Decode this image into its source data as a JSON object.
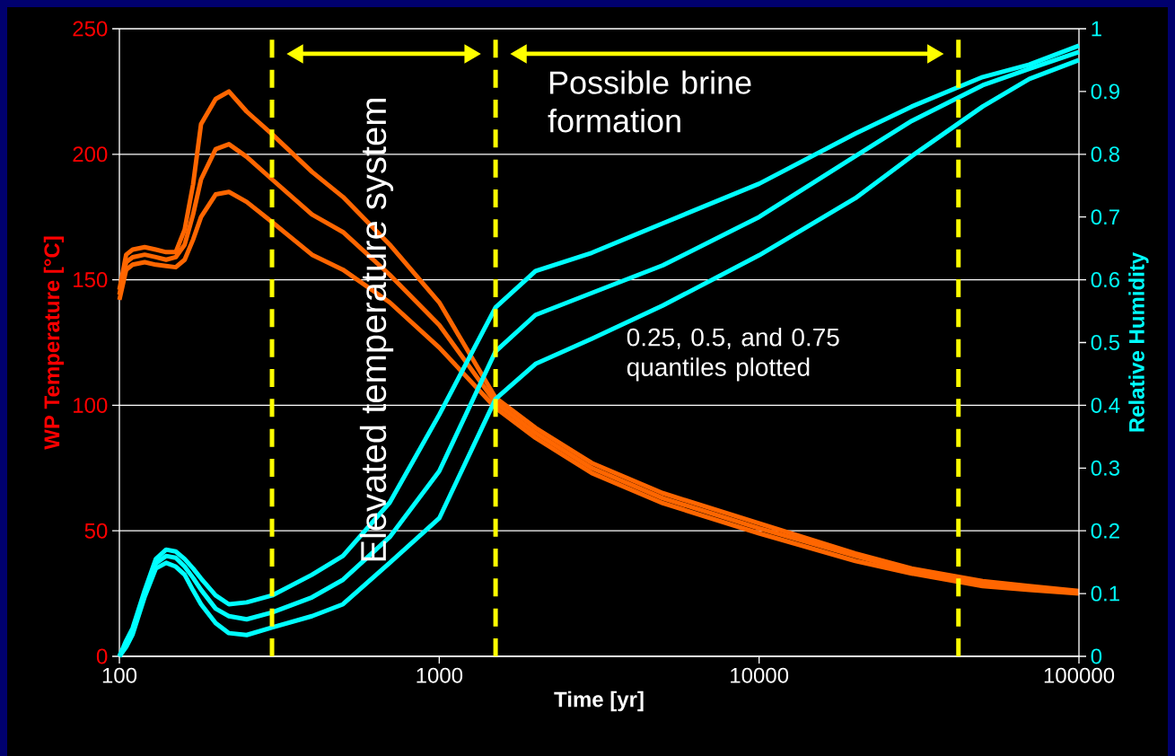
{
  "chart_data": {
    "type": "line",
    "xlabel": "Time [yr]",
    "ylabel": "WP Temperature [°C]",
    "y2label": "Relative Humidity",
    "log": "x",
    "grid": "y",
    "x": [
      100,
      105,
      110,
      120,
      130,
      140,
      150,
      160,
      170,
      180,
      200,
      220,
      250,
      300,
      400,
      500,
      700,
      1000,
      1500,
      2000,
      3000,
      5000,
      10000,
      20000,
      30000,
      50000,
      70000,
      100000
    ],
    "xlim": [
      100,
      100000
    ],
    "xticks": [
      100,
      1000,
      10000,
      100000
    ],
    "ylim": [
      0,
      250
    ],
    "yticks": [
      0,
      50,
      100,
      150,
      200,
      250
    ],
    "y2lim": [
      0,
      1
    ],
    "y2ticks": [
      0,
      0.1,
      0.2,
      0.3,
      0.4,
      0.5,
      0.6,
      0.7,
      0.8,
      0.9,
      1
    ],
    "series": [
      {
        "color": "#ff6600",
        "values": [
          146,
          160,
          162,
          163,
          162,
          161,
          161,
          170,
          188,
          212,
          222,
          225,
          217,
          208,
          193,
          183,
          164,
          141,
          103,
          91,
          77,
          65,
          53,
          41,
          35,
          30,
          28,
          26
        ]
      },
      {
        "color": "#ff6600",
        "values": [
          144,
          157,
          159,
          160,
          159,
          158,
          159,
          164,
          176,
          190,
          202,
          204,
          199,
          190,
          176,
          169,
          152,
          132,
          101,
          89,
          75,
          63,
          51,
          40,
          34,
          29,
          27,
          25.5
        ]
      },
      {
        "color": "#ff6600",
        "values": [
          142,
          154,
          156,
          157,
          156,
          155.5,
          155,
          158,
          166,
          175,
          184,
          185,
          181,
          173,
          160,
          154,
          141,
          123,
          99,
          87,
          73,
          61,
          49,
          38,
          33,
          28,
          26.5,
          25
        ]
      },
      {
        "color": "#00ffff",
        "axis": "y2",
        "values": [
          0,
          0.025,
          0.045,
          0.105,
          0.155,
          0.17,
          0.167,
          0.155,
          0.14,
          0.124,
          0.097,
          0.083,
          0.086,
          0.097,
          0.13,
          0.16,
          0.245,
          0.385,
          0.556,
          0.614,
          0.643,
          0.69,
          0.753,
          0.833,
          0.876,
          0.923,
          0.943,
          0.973
        ]
      },
      {
        "color": "#00ffff",
        "axis": "y2",
        "values": [
          0,
          0.02,
          0.04,
          0.1,
          0.148,
          0.16,
          0.157,
          0.143,
          0.125,
          0.106,
          0.076,
          0.064,
          0.059,
          0.07,
          0.094,
          0.122,
          0.19,
          0.295,
          0.486,
          0.544,
          0.579,
          0.623,
          0.7,
          0.797,
          0.853,
          0.91,
          0.936,
          0.963
        ]
      },
      {
        "color": "#00ffff",
        "axis": "y2",
        "values": [
          0,
          0.015,
          0.035,
          0.095,
          0.14,
          0.149,
          0.143,
          0.13,
          0.105,
          0.083,
          0.053,
          0.037,
          0.034,
          0.046,
          0.064,
          0.083,
          0.149,
          0.22,
          0.41,
          0.466,
          0.506,
          0.559,
          0.639,
          0.73,
          0.797,
          0.876,
          0.92,
          0.95
        ]
      }
    ],
    "ref_lines": [
      {
        "axis": "x",
        "value": 300,
        "color": "#ffff00",
        "line_style": "dashed"
      },
      {
        "axis": "x",
        "value": 1500,
        "color": "#ffff00",
        "line_style": "dashed"
      },
      {
        "axis": "x",
        "value": 42000,
        "color": "#ffff00",
        "line_style": "dashed"
      }
    ],
    "annotations": [
      "Elevated temperature system",
      "Possible brine formation",
      "0.25, 0.5, and 0.75 quantiles plotted"
    ]
  }
}
